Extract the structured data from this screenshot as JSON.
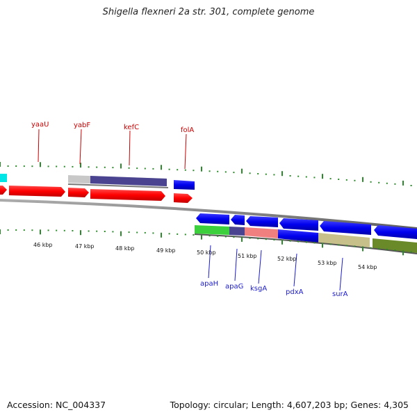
{
  "header": {
    "title": "Shigella flexneri 2a str. 301, complete genome"
  },
  "footer": {
    "accession": "Accession: NC_004337",
    "summary": "Topology: circular; Length: 4,607,203 bp; Genes: 4,305"
  },
  "colors": {
    "top_labels": "#cc0000",
    "bottom_labels": "#1a1acc",
    "tick_green": "#2a8a2a"
  },
  "genes_top": [
    {
      "name": "yaaU"
    },
    {
      "name": "yabF"
    },
    {
      "name": "kefC"
    },
    {
      "name": "folA"
    }
  ],
  "genes_bottom": [
    {
      "name": "apaH"
    },
    {
      "name": "apaG"
    },
    {
      "name": "ksgA"
    },
    {
      "name": "pdxA"
    },
    {
      "name": "surA"
    }
  ],
  "ruler": {
    "labels": [
      "46 kbp",
      "47 kbp",
      "48 kbp",
      "49 kbp",
      "50 kbp",
      "51 kbp",
      "52 kbp",
      "53 kbp",
      "54 kbp"
    ]
  }
}
